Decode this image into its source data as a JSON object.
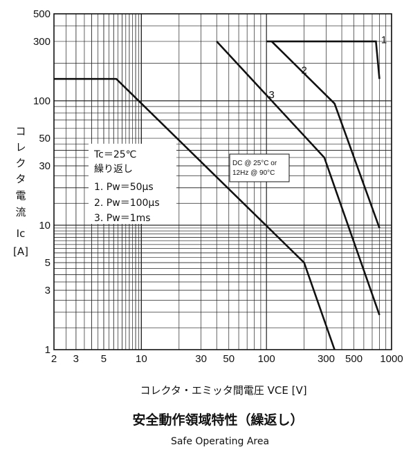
{
  "chart_data": {
    "type": "line",
    "title": "安全動作領域特性（繰返し）",
    "subtitle": "Safe Operating Area",
    "xlabel": "コレクタ・エミッタ間電圧 VCE [V]",
    "ylabel": [
      "コ",
      "レ",
      "ク",
      "タ",
      "電",
      "流",
      "Ic",
      "[A]"
    ],
    "x_scale": "log",
    "y_scale": "log",
    "xlim": [
      2,
      1000
    ],
    "ylim": [
      1,
      500
    ],
    "grid": true,
    "x_ticks": [
      {
        "value": 2,
        "label": "2"
      },
      {
        "value": 3,
        "label": "3"
      },
      {
        "value": 5,
        "label": "5"
      },
      {
        "value": 10,
        "label": "10"
      },
      {
        "value": 30,
        "label": "30"
      },
      {
        "value": 50,
        "label": "50"
      },
      {
        "value": 100,
        "label": "100"
      },
      {
        "value": 300,
        "label": "300"
      },
      {
        "value": 500,
        "label": "500"
      },
      {
        "value": 1000,
        "label": "1000"
      }
    ],
    "y_ticks": [
      {
        "value": 1,
        "label": "1"
      },
      {
        "value": 3,
        "label": "3"
      },
      {
        "value": 5,
        "label": "5"
      },
      {
        "value": 10,
        "label": "10"
      },
      {
        "value": 30,
        "label": "30"
      },
      {
        "value": 50,
        "label": "50"
      },
      {
        "value": 100,
        "label": "100"
      },
      {
        "value": 300,
        "label": "300"
      },
      {
        "value": 500,
        "label": "500"
      }
    ],
    "series": [
      {
        "name": "1",
        "label_at": [
          870,
          290
        ],
        "points": [
          [
            100,
            300
          ],
          [
            750,
            300
          ],
          [
            800,
            150
          ]
        ]
      },
      {
        "name": "2",
        "label_at": [
          200,
          165
        ],
        "points": [
          [
            110,
            300
          ],
          [
            350,
            95
          ],
          [
            800,
            9.5
          ]
        ]
      },
      {
        "name": "3",
        "label_at": [
          110,
          105
        ],
        "points": [
          [
            40,
            300
          ],
          [
            290,
            35
          ],
          [
            800,
            1.9
          ]
        ]
      },
      {
        "name": "",
        "points": [
          [
            2,
            150
          ],
          [
            6.3,
            150
          ],
          [
            200,
            5
          ],
          [
            350,
            1
          ]
        ]
      }
    ],
    "legend": [
      "Tc＝25℃",
      "繰り返し",
      "1.  Pw＝50μs",
      "2.  Pw＝100μs",
      "3.  Pw＝1ms"
    ],
    "annotation": [
      "DC @ 25°C or",
      "12Hz @ 90°C"
    ]
  }
}
